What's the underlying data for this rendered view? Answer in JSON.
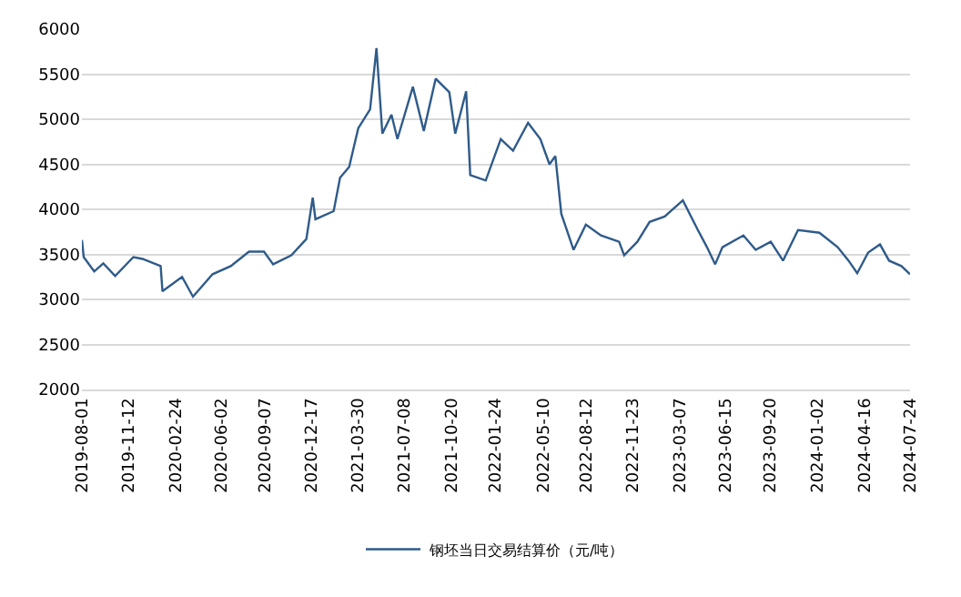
{
  "chart_data": {
    "type": "line",
    "x": [
      "2019-08-01",
      "2019-08-05",
      "2019-08-28",
      "2019-09-17",
      "2019-10-13",
      "2019-11-22",
      "2019-12-12",
      "2020-01-21",
      "2020-01-25",
      "2020-03-08",
      "2020-04-01",
      "2020-05-14",
      "2020-06-23",
      "2020-08-02",
      "2020-09-04",
      "2020-09-24",
      "2020-11-03",
      "2020-12-06",
      "2020-12-20",
      "2020-12-26",
      "2021-02-04",
      "2021-02-18",
      "2021-03-10",
      "2021-03-30",
      "2021-04-25",
      "2021-05-09",
      "2021-05-22",
      "2021-06-11",
      "2021-06-24",
      "2021-07-28",
      "2021-08-21",
      "2021-09-16",
      "2021-10-16",
      "2021-10-29",
      "2021-11-22",
      "2021-12-01",
      "2022-01-04",
      "2022-02-06",
      "2022-03-05",
      "2022-04-07",
      "2022-05-04",
      "2022-05-24",
      "2022-06-06",
      "2022-06-19",
      "2022-07-16",
      "2022-08-12",
      "2022-09-14",
      "2022-10-24",
      "2022-11-04",
      "2022-12-03",
      "2022-12-30",
      "2023-02-01",
      "2023-03-13",
      "2023-04-15",
      "2023-05-05",
      "2023-05-23",
      "2023-06-08",
      "2023-07-24",
      "2023-08-20",
      "2023-09-22",
      "2023-10-19",
      "2023-11-21",
      "2024-01-07",
      "2024-02-16",
      "2024-03-11",
      "2024-03-30",
      "2024-04-23",
      "2024-05-19",
      "2024-06-08",
      "2024-07-05",
      "2024-07-24"
    ],
    "series": [
      {
        "name": "钢坯当日交易结算价（元/吨）",
        "color": "#2f5b8a",
        "values": [
          3660,
          3470,
          3310,
          3400,
          3260,
          3470,
          3450,
          3370,
          3090,
          3250,
          3030,
          3280,
          3370,
          3530,
          3530,
          3390,
          3490,
          3670,
          4130,
          3890,
          3980,
          4350,
          4470,
          4900,
          5110,
          5790,
          4840,
          5050,
          4780,
          5360,
          4870,
          5450,
          5300,
          4840,
          5310,
          4380,
          4320,
          4780,
          4650,
          4960,
          4780,
          4500,
          4590,
          3950,
          3550,
          3830,
          3710,
          3640,
          3490,
          3640,
          3860,
          3920,
          4100,
          3770,
          3580,
          3390,
          3580,
          3710,
          3550,
          3640,
          3430,
          3770,
          3740,
          3580,
          3430,
          3290,
          3520,
          3610,
          3430,
          3370,
          3280
        ]
      }
    ],
    "xlim": [
      "2019-08-01",
      "2024-07-24"
    ],
    "xticks": [
      "2019-08-01",
      "2019-11-12",
      "2020-02-24",
      "2020-06-02",
      "2020-09-07",
      "2020-12-17",
      "2021-03-30",
      "2021-07-08",
      "2021-10-20",
      "2022-01-24",
      "2022-05-10",
      "2022-08-12",
      "2022-11-23",
      "2023-03-07",
      "2023-06-15",
      "2023-09-20",
      "2024-01-02",
      "2024-04-16",
      "2024-07-24"
    ],
    "ylim": [
      2000,
      6000
    ],
    "yticks": [
      2000,
      2500,
      3000,
      3500,
      4000,
      4500,
      5000,
      5500,
      6000
    ],
    "grid": "y",
    "legend": "bottom",
    "marker": "none",
    "line_style": "solid"
  }
}
